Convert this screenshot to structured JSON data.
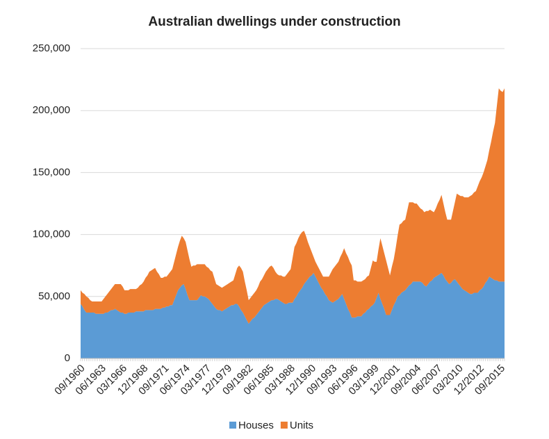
{
  "chart_data": {
    "type": "stacked_area",
    "title": "Australian dwellings under construction",
    "categories": [
      "09/1960",
      null,
      null,
      null,
      null,
      null,
      null,
      null,
      null,
      null,
      null,
      "06/1963",
      null,
      null,
      null,
      null,
      null,
      null,
      null,
      null,
      null,
      null,
      "03/1966",
      null,
      null,
      null,
      null,
      null,
      null,
      null,
      null,
      null,
      null,
      "12/1968",
      null,
      null,
      null,
      null,
      null,
      null,
      null,
      null,
      null,
      null,
      "09/1971",
      null,
      null,
      null,
      null,
      null,
      null,
      null,
      null,
      null,
      null,
      "06/1974",
      null,
      null,
      null,
      null,
      null,
      null,
      null,
      null,
      null,
      null,
      "03/1977",
      null,
      null,
      null,
      null,
      null,
      null,
      null,
      null,
      null,
      null,
      "12/1979",
      null,
      null,
      null,
      null,
      null,
      null,
      null,
      null,
      null,
      null,
      "09/1982",
      null,
      null,
      null,
      null,
      null,
      null,
      null,
      null,
      null,
      null,
      "06/1985",
      null,
      null,
      null,
      null,
      null,
      null,
      null,
      null,
      null,
      null,
      "03/1988",
      null,
      null,
      null,
      null,
      null,
      null,
      null,
      null,
      null,
      null,
      "12/1990",
      null,
      null,
      null,
      null,
      null,
      null,
      null,
      null,
      null,
      null,
      "09/1993",
      null,
      null,
      null,
      null,
      null,
      null,
      null,
      null,
      null,
      null,
      "06/1996",
      null,
      null,
      null,
      null,
      null,
      null,
      null,
      null,
      null,
      null,
      "03/1999",
      null,
      null,
      null,
      null,
      null,
      null,
      null,
      null,
      null,
      null,
      "12/2001",
      null,
      null,
      null,
      null,
      null,
      null,
      null,
      null,
      null,
      null,
      "09/2004",
      null,
      null,
      null,
      null,
      null,
      null,
      null,
      null,
      null,
      null,
      "06/2007",
      null,
      null,
      null,
      null,
      null,
      null,
      null,
      null,
      null,
      null,
      "03/2010",
      null,
      null,
      null,
      null,
      null,
      null,
      null,
      null,
      null,
      null,
      "12/2012",
      null,
      null,
      null,
      null,
      null,
      null,
      null,
      null,
      null,
      null,
      "09/2015",
      null,
      null
    ],
    "series": [
      {
        "name": "Houses",
        "color": "#5b9bd5",
        "values": [
          44000,
          42000,
          39000,
          37000,
          37000,
          37000,
          37000,
          37000,
          36000,
          36000,
          36000,
          36000,
          36000,
          37000,
          37000,
          38000,
          39000,
          39000,
          40000,
          39000,
          38000,
          37000,
          37000,
          36000,
          36000,
          37000,
          37000,
          37000,
          37000,
          38000,
          38000,
          38000,
          38000,
          38000,
          39000,
          39000,
          39000,
          39000,
          39000,
          40000,
          40000,
          40000,
          40000,
          41000,
          41000,
          42000,
          42000,
          43000,
          43000,
          47000,
          51000,
          55000,
          57000,
          59000,
          60000,
          56000,
          51000,
          47000,
          47000,
          47000,
          47000,
          47000,
          49000,
          51000,
          50000,
          50000,
          49000,
          48000,
          46000,
          44000,
          42000,
          40000,
          39000,
          39000,
          38000,
          39000,
          40000,
          41000,
          42000,
          43000,
          43000,
          44000,
          44000,
          42000,
          39000,
          37000,
          34000,
          31000,
          28000,
          30000,
          32000,
          33000,
          35000,
          37000,
          39000,
          41000,
          43000,
          44000,
          45000,
          46000,
          47000,
          47000,
          48000,
          48000,
          47000,
          46000,
          45000,
          44000,
          44000,
          45000,
          45000,
          45000,
          48000,
          50000,
          53000,
          55000,
          57000,
          60000,
          62000,
          64000,
          66000,
          67000,
          69000,
          66000,
          63000,
          60000,
          57000,
          55000,
          52000,
          50000,
          47000,
          46000,
          45000,
          46000,
          47000,
          48000,
          50000,
          52000,
          48000,
          44000,
          40000,
          37000,
          33000,
          33000,
          33000,
          34000,
          34000,
          34000,
          36000,
          37000,
          39000,
          40000,
          42000,
          43000,
          45000,
          49000,
          53000,
          48000,
          44000,
          40000,
          35000,
          35000,
          35000,
          39000,
          43000,
          46000,
          50000,
          51000,
          53000,
          54000,
          55000,
          57000,
          59000,
          60000,
          62000,
          62000,
          62000,
          62000,
          62000,
          61000,
          59000,
          58000,
          60000,
          62000,
          63000,
          65000,
          66000,
          67000,
          68000,
          69000,
          67000,
          64000,
          62000,
          60000,
          61000,
          63000,
          64000,
          62000,
          60000,
          58000,
          56000,
          55000,
          54000,
          53000,
          52000,
          52000,
          53000,
          53000,
          53000,
          55000,
          56000,
          58000,
          61000,
          63000,
          66000,
          65000,
          64000,
          63000,
          63000,
          62000,
          62000,
          62000,
          62000
        ]
      },
      {
        "name": "Units",
        "color": "#ed7d31",
        "values": [
          11000,
          11000,
          13000,
          13000,
          12000,
          10000,
          9000,
          9000,
          10000,
          10000,
          10000,
          10000,
          12000,
          13000,
          15000,
          16000,
          17000,
          19000,
          20000,
          21000,
          22000,
          23000,
          21000,
          19000,
          19000,
          18000,
          19000,
          19000,
          19000,
          18000,
          19000,
          21000,
          22000,
          24000,
          26000,
          28000,
          31000,
          32000,
          33000,
          33000,
          30000,
          28000,
          25000,
          24000,
          25000,
          24000,
          26000,
          27000,
          29000,
          31000,
          33000,
          35000,
          38000,
          40000,
          37000,
          38000,
          36000,
          33000,
          27000,
          28000,
          28000,
          29000,
          27000,
          25000,
          26000,
          26000,
          25000,
          25000,
          25000,
          26000,
          23000,
          20000,
          20000,
          19000,
          19000,
          19000,
          19000,
          19000,
          19000,
          19000,
          20000,
          24000,
          29000,
          33000,
          34000,
          33000,
          28000,
          24000,
          19000,
          19000,
          19000,
          20000,
          20000,
          21000,
          23000,
          23000,
          24000,
          26000,
          27000,
          28000,
          28000,
          26000,
          22000,
          20000,
          20000,
          21000,
          21000,
          22000,
          24000,
          25000,
          27000,
          36000,
          42000,
          43000,
          44000,
          45000,
          45000,
          43000,
          37000,
          30000,
          24000,
          19000,
          13000,
          12000,
          12000,
          12000,
          12000,
          11000,
          14000,
          16000,
          19000,
          23000,
          27000,
          28000,
          29000,
          30000,
          32000,
          33000,
          41000,
          41000,
          42000,
          41000,
          42000,
          30000,
          30000,
          28000,
          28000,
          28000,
          27000,
          27000,
          27000,
          27000,
          31000,
          36000,
          33000,
          29000,
          35000,
          49000,
          47000,
          45000,
          44000,
          38000,
          32000,
          35000,
          37000,
          43000,
          49000,
          57000,
          56000,
          57000,
          57000,
          62000,
          67000,
          66000,
          64000,
          63000,
          63000,
          61000,
          59000,
          59000,
          59000,
          61000,
          59000,
          58000,
          56000,
          53000,
          55000,
          58000,
          60000,
          63000,
          58000,
          54000,
          50000,
          52000,
          51000,
          56000,
          62000,
          71000,
          72000,
          73000,
          75000,
          75000,
          76000,
          77000,
          79000,
          80000,
          81000,
          82000,
          86000,
          88000,
          90000,
          92000,
          94000,
          97000,
          102000,
          110000,
          119000,
          127000,
          141000,
          156000,
          154000,
          153000,
          156000
        ]
      }
    ],
    "ylim": [
      0,
      250000
    ],
    "yticks": [
      0,
      {
        "value": 50000,
        "label": "50,000"
      },
      {
        "value": 100000,
        "label": "100,000"
      },
      {
        "value": 150000,
        "label": "150,000"
      },
      {
        "value": 200000,
        "label": "200,000"
      },
      {
        "value": 250000,
        "label": "250,000"
      }
    ],
    "grid": true,
    "legend": "bottom"
  }
}
